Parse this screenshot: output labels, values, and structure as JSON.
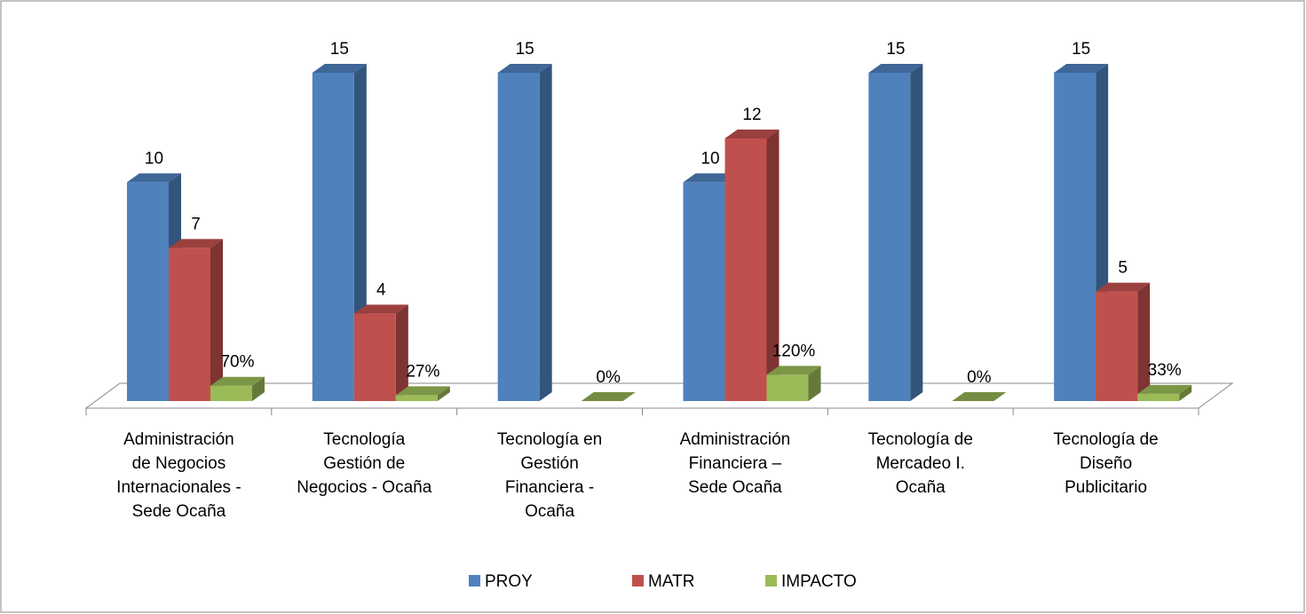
{
  "chart_data": {
    "type": "bar3d",
    "categories": [
      "Administración\nde Negocios\nInternacionales -\nSede Ocaña",
      "Tecnología\nGestión de\nNegocios - Ocaña",
      "Tecnología en\nGestión\nFinanciera -\nOcaña",
      "Administración\nFinanciera –\nSede Ocaña",
      "Tecnología de\nMercadeo I.\nOcaña",
      "Tecnología de\nDiseño\nPublicitario"
    ],
    "series": [
      {
        "name": "PROY",
        "color": "#4f81bd",
        "values": [
          10,
          15,
          15,
          10,
          15,
          15
        ]
      },
      {
        "name": "MATR",
        "color": "#c0504d",
        "values": [
          7,
          4,
          null,
          12,
          null,
          5
        ]
      },
      {
        "name": "IMPACTO",
        "color": "#9bbb59",
        "values": [
          0.7,
          0.27,
          0,
          1.2,
          0,
          0.33
        ],
        "value_labels": [
          "70%",
          "27%",
          "0%",
          "120%",
          "0%",
          "33%"
        ]
      }
    ],
    "legend": "bottom"
  }
}
